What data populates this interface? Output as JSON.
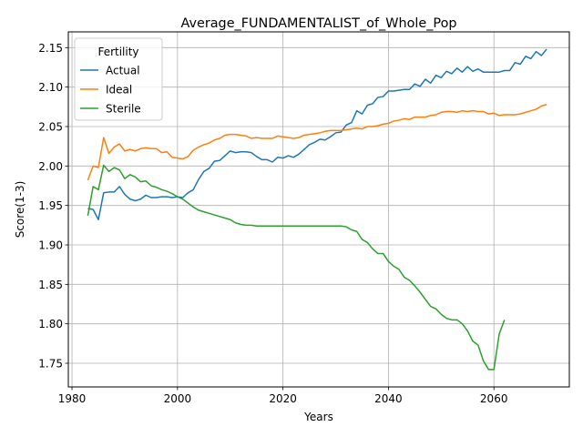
{
  "chart_data": {
    "type": "line",
    "title": "Average_FUNDAMENTALIST_of_Whole_Pop",
    "xlabel": "Years",
    "ylabel": "Score(1-3)",
    "xlim": [
      1979.3,
      1974.3
    ],
    "ylim": [
      1.72,
      2.17
    ],
    "xticks": [
      1980,
      2000,
      2020,
      2040,
      2060
    ],
    "yticks": [
      1.75,
      1.8,
      1.85,
      1.9,
      1.95,
      2.0,
      2.05,
      2.1,
      2.15
    ],
    "ytick_labels": [
      "1.75",
      "1.80",
      "1.85",
      "1.90",
      "1.95",
      "2.00",
      "2.05",
      "2.10",
      "2.15"
    ],
    "grid": true,
    "legend": {
      "title": "Fertility",
      "placement": "top-left"
    },
    "series": [
      {
        "name": "Actual",
        "color": "#1f77b4",
        "x": [
          1983,
          1984,
          1985,
          1986,
          1987,
          1988,
          1989,
          1990,
          1991,
          1992,
          1993,
          1994,
          1995,
          1996,
          1997,
          1998,
          1999,
          2000,
          2001,
          2002,
          2003,
          2004,
          2005,
          2006,
          2007,
          2008,
          2009,
          2010,
          2011,
          2012,
          2013,
          2014,
          2015,
          2016,
          2017,
          2018,
          2019,
          2020,
          2021,
          2022,
          2023,
          2024,
          2025,
          2026,
          2027,
          2028,
          2029,
          2030,
          2031,
          2032,
          2033,
          2034,
          2035,
          2036,
          2037,
          2038,
          2039,
          2040,
          2041,
          2042,
          2043,
          2044,
          2045,
          2046,
          2047,
          2048,
          2049,
          2050,
          2051,
          2052,
          2053,
          2054,
          2055,
          2056,
          2057,
          2058,
          2059,
          2060,
          2061,
          2062,
          2063,
          2064,
          2065,
          2066,
          2067,
          2068,
          2069,
          2070
        ],
        "values": [
          1.946,
          1.945,
          1.932,
          1.966,
          1.967,
          1.967,
          1.974,
          1.964,
          1.958,
          1.956,
          1.958,
          1.963,
          1.96,
          1.96,
          1.961,
          1.961,
          1.96,
          1.961,
          1.96,
          1.966,
          1.97,
          1.983,
          1.993,
          1.997,
          2.006,
          2.007,
          2.013,
          2.019,
          2.017,
          2.018,
          2.018,
          2.017,
          2.012,
          2.008,
          2.008,
          2.005,
          2.011,
          2.01,
          2.013,
          2.011,
          2.015,
          2.021,
          2.027,
          2.03,
          2.034,
          2.033,
          2.037,
          2.042,
          2.043,
          2.052,
          2.055,
          2.07,
          2.066,
          2.077,
          2.079,
          2.087,
          2.088,
          2.095,
          2.095,
          2.096,
          2.097,
          2.097,
          2.104,
          2.101,
          2.11,
          2.105,
          2.115,
          2.112,
          2.12,
          2.117,
          2.124,
          2.119,
          2.126,
          2.12,
          2.123,
          2.119,
          2.119,
          2.119,
          2.119,
          2.121,
          2.121,
          2.131,
          2.129,
          2.139,
          2.136,
          2.145,
          2.14,
          2.148
        ]
      },
      {
        "name": "Ideal",
        "color": "#ff7f0e",
        "x": [
          1983,
          1984,
          1985,
          1986,
          1987,
          1988,
          1989,
          1990,
          1991,
          1992,
          1993,
          1994,
          1995,
          1996,
          1997,
          1998,
          1999,
          2000,
          2001,
          2002,
          2003,
          2004,
          2005,
          2006,
          2007,
          2008,
          2009,
          2010,
          2011,
          2012,
          2013,
          2014,
          2015,
          2016,
          2017,
          2018,
          2019,
          2020,
          2021,
          2022,
          2023,
          2024,
          2025,
          2026,
          2027,
          2028,
          2029,
          2030,
          2031,
          2032,
          2033,
          2034,
          2035,
          2036,
          2037,
          2038,
          2039,
          2040,
          2041,
          2042,
          2043,
          2044,
          2045,
          2046,
          2047,
          2048,
          2049,
          2050,
          2051,
          2052,
          2053,
          2054,
          2055,
          2056,
          2057,
          2058,
          2059,
          2060,
          2061,
          2062,
          2063,
          2064,
          2065,
          2066,
          2067,
          2068,
          2069,
          2070
        ],
        "values": [
          1.982,
          2.0,
          1.998,
          2.036,
          2.016,
          2.024,
          2.028,
          2.019,
          2.021,
          2.019,
          2.022,
          2.023,
          2.022,
          2.022,
          2.017,
          2.018,
          2.011,
          2.01,
          2.009,
          2.012,
          2.02,
          2.024,
          2.027,
          2.029,
          2.033,
          2.035,
          2.039,
          2.04,
          2.04,
          2.039,
          2.038,
          2.035,
          2.036,
          2.035,
          2.035,
          2.035,
          2.038,
          2.037,
          2.036,
          2.035,
          2.036,
          2.039,
          2.04,
          2.041,
          2.042,
          2.044,
          2.045,
          2.045,
          2.045,
          2.046,
          2.047,
          2.048,
          2.047,
          2.05,
          2.05,
          2.051,
          2.053,
          2.054,
          2.057,
          2.058,
          2.06,
          2.059,
          2.062,
          2.062,
          2.062,
          2.064,
          2.065,
          2.068,
          2.069,
          2.069,
          2.068,
          2.07,
          2.069,
          2.07,
          2.069,
          2.069,
          2.066,
          2.067,
          2.064,
          2.065,
          2.065,
          2.065,
          2.066,
          2.068,
          2.07,
          2.072,
          2.076,
          2.078
        ]
      },
      {
        "name": "Sterile",
        "color": "#2ca02c",
        "x": [
          1983,
          1984,
          1985,
          1986,
          1987,
          1988,
          1989,
          1990,
          1991,
          1992,
          1993,
          1994,
          1995,
          1996,
          1997,
          1998,
          1999,
          2000,
          2001,
          2002,
          2003,
          2004,
          2005,
          2006,
          2007,
          2008,
          2009,
          2010,
          2011,
          2012,
          2013,
          2014,
          2015,
          2016,
          2017,
          2018,
          2019,
          2020,
          2021,
          2022,
          2023,
          2024,
          2025,
          2026,
          2027,
          2028,
          2029,
          2030,
          2031,
          2032,
          2033,
          2034,
          2035,
          2036,
          2037,
          2038,
          2039,
          2040,
          2041,
          2042,
          2043,
          2044,
          2045,
          2046,
          2047,
          2048,
          2049,
          2050,
          2051,
          2052,
          2053,
          2054,
          2055,
          2056,
          2057,
          2058,
          2059,
          2060,
          2061,
          2062
        ],
        "values": [
          1.937,
          1.974,
          1.97,
          2.001,
          1.993,
          1.998,
          1.995,
          1.984,
          1.989,
          1.986,
          1.98,
          1.981,
          1.975,
          1.973,
          1.97,
          1.968,
          1.965,
          1.961,
          1.958,
          1.953,
          1.948,
          1.944,
          1.942,
          1.94,
          1.938,
          1.936,
          1.934,
          1.932,
          1.928,
          1.926,
          1.925,
          1.925,
          1.924,
          1.924,
          1.924,
          1.924,
          1.924,
          1.924,
          1.924,
          1.924,
          1.924,
          1.924,
          1.924,
          1.924,
          1.924,
          1.924,
          1.924,
          1.924,
          1.924,
          1.923,
          1.919,
          1.917,
          1.907,
          1.903,
          1.895,
          1.889,
          1.889,
          1.879,
          1.873,
          1.869,
          1.859,
          1.855,
          1.848,
          1.84,
          1.831,
          1.822,
          1.819,
          1.812,
          1.807,
          1.805,
          1.805,
          1.8,
          1.791,
          1.778,
          1.773,
          1.753,
          1.742,
          1.742,
          1.787,
          1.805
        ]
      }
    ]
  }
}
